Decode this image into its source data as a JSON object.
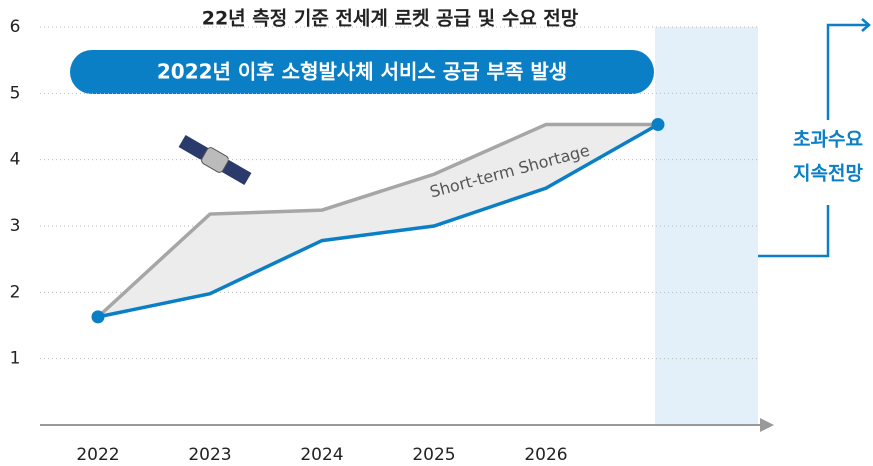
{
  "chart_data": {
    "type": "line",
    "title": "22년 측정 기준 전세계 로켓 공급 및 수요 전망",
    "banner": "2022년 이후 소형발사체 서비스  공급 부족 발생",
    "annotation": "Short-term Shortage",
    "side_note": [
      "초과수요",
      "지속전망"
    ],
    "categories": [
      "2022",
      "2023",
      "2024",
      "2025",
      "2026",
      null
    ],
    "series": [
      {
        "color": "#a6a6a6",
        "values": [
          1.63,
          3.18,
          3.24,
          3.78,
          4.53,
          4.53
        ]
      },
      {
        "color": "#0b7fc6",
        "values": [
          1.63,
          1.98,
          2.78,
          3.0,
          3.57,
          4.53
        ]
      }
    ],
    "ylim": [
      0,
      6
    ],
    "yticks": [
      1,
      2,
      3,
      4,
      5,
      6
    ],
    "grid": true
  }
}
